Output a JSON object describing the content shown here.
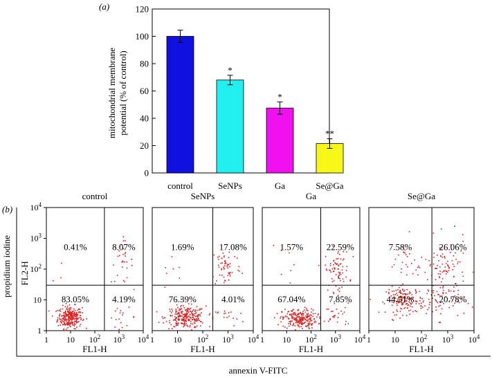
{
  "chart_data": [
    {
      "type": "bar",
      "panel_label": "(a)",
      "title": "",
      "xlabel": "",
      "ylabel_line1": "mitochondrial membrane",
      "ylabel_line2": "potential  (% of control)",
      "ylim": [
        0,
        120
      ],
      "yticks": [
        "0",
        "20",
        "40",
        "60",
        "80",
        "100",
        "120"
      ],
      "categories": [
        "control",
        "SeNPs",
        "Ga",
        "Se@Ga"
      ],
      "values": [
        100,
        68,
        47.5,
        21.5
      ],
      "errors": [
        4.5,
        3.5,
        4.5,
        3.5
      ],
      "significance": [
        "",
        "*",
        "*",
        "**"
      ],
      "colors": [
        "#1010e0",
        "#22f0f0",
        "#f010f0",
        "#f8f818"
      ]
    },
    {
      "type": "scatter",
      "panel_label": "(b)",
      "ylabel": "propidium iodine",
      "xlabel": "annexin V-FITC",
      "panel_xlabel": "FL1-H",
      "panel_ylabel": "FL2-H",
      "axis_scale": "log",
      "axis_range": [
        1,
        10000
      ],
      "x_ticks": [
        {
          "base": "1",
          "exp": ""
        },
        {
          "base": "10",
          "exp": ""
        },
        {
          "base": "10",
          "exp": "2"
        },
        {
          "base": "10",
          "exp": "3"
        },
        {
          "base": "10",
          "exp": "4"
        }
      ],
      "y_ticks": [
        {
          "base": "1",
          "exp": ""
        },
        {
          "base": "10",
          "exp": ""
        },
        {
          "base": "10",
          "exp": "2"
        },
        {
          "base": "10",
          "exp": "3"
        },
        {
          "base": "10",
          "exp": "4"
        }
      ],
      "quadrant_gate": {
        "x": 250,
        "y": 30
      },
      "point_color": "#e01b1b",
      "panels": [
        {
          "name": "control",
          "quadrants": {
            "upper_left": "0.41%",
            "upper_right": "8.07%",
            "lower_left": "83.05%",
            "lower_right": "4.19%"
          }
        },
        {
          "name": "SeNPs",
          "quadrants": {
            "upper_left": "1.69%",
            "upper_right": "17.08%",
            "lower_left": "76.39%",
            "lower_right": "4.01%"
          }
        },
        {
          "name": "Ga",
          "quadrants": {
            "upper_left": "1.57%",
            "upper_right": "22.59%",
            "lower_left": "67.04%",
            "lower_right": "7.85%"
          }
        },
        {
          "name": "Se@Ga",
          "quadrants": {
            "upper_left": "7.58%",
            "upper_right": "26.06%",
            "lower_left": "44.51%",
            "lower_right": "20.78%"
          }
        }
      ]
    }
  ]
}
